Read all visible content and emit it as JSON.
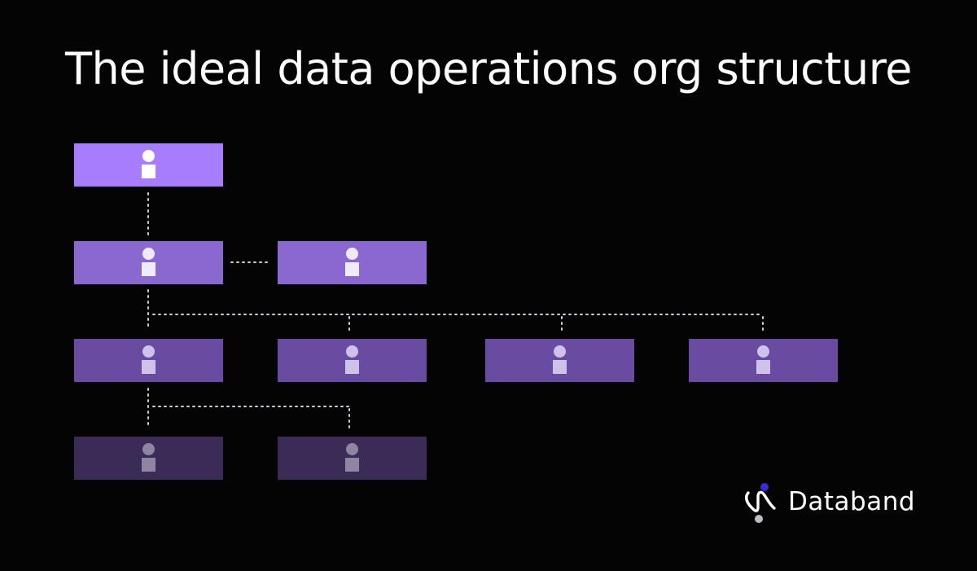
{
  "title": "The ideal data operations org structure",
  "levels": [
    {
      "tier": 1,
      "color": "#a77dfd",
      "icon_head": "#ffffff",
      "icon_body": "#ffffff"
    },
    {
      "tier": 2,
      "color": "#8b68cf",
      "icon_head": "#f0eaff",
      "icon_body": "#f0eaff"
    },
    {
      "tier": 3,
      "color": "#6a4ba2",
      "icon_head": "#cfc2ea",
      "icon_body": "#cfc2ea"
    },
    {
      "tier": 4,
      "color": "#3a2c56",
      "icon_head": "#8e86a0",
      "icon_body": "#8e86a0"
    }
  ],
  "connector_color": "#cfcfd8",
  "brand": {
    "name": "Databand",
    "mark_accent": "#3a2bd6",
    "mark_line": "#ffffff",
    "mark_dot": "#bdbdc6"
  }
}
